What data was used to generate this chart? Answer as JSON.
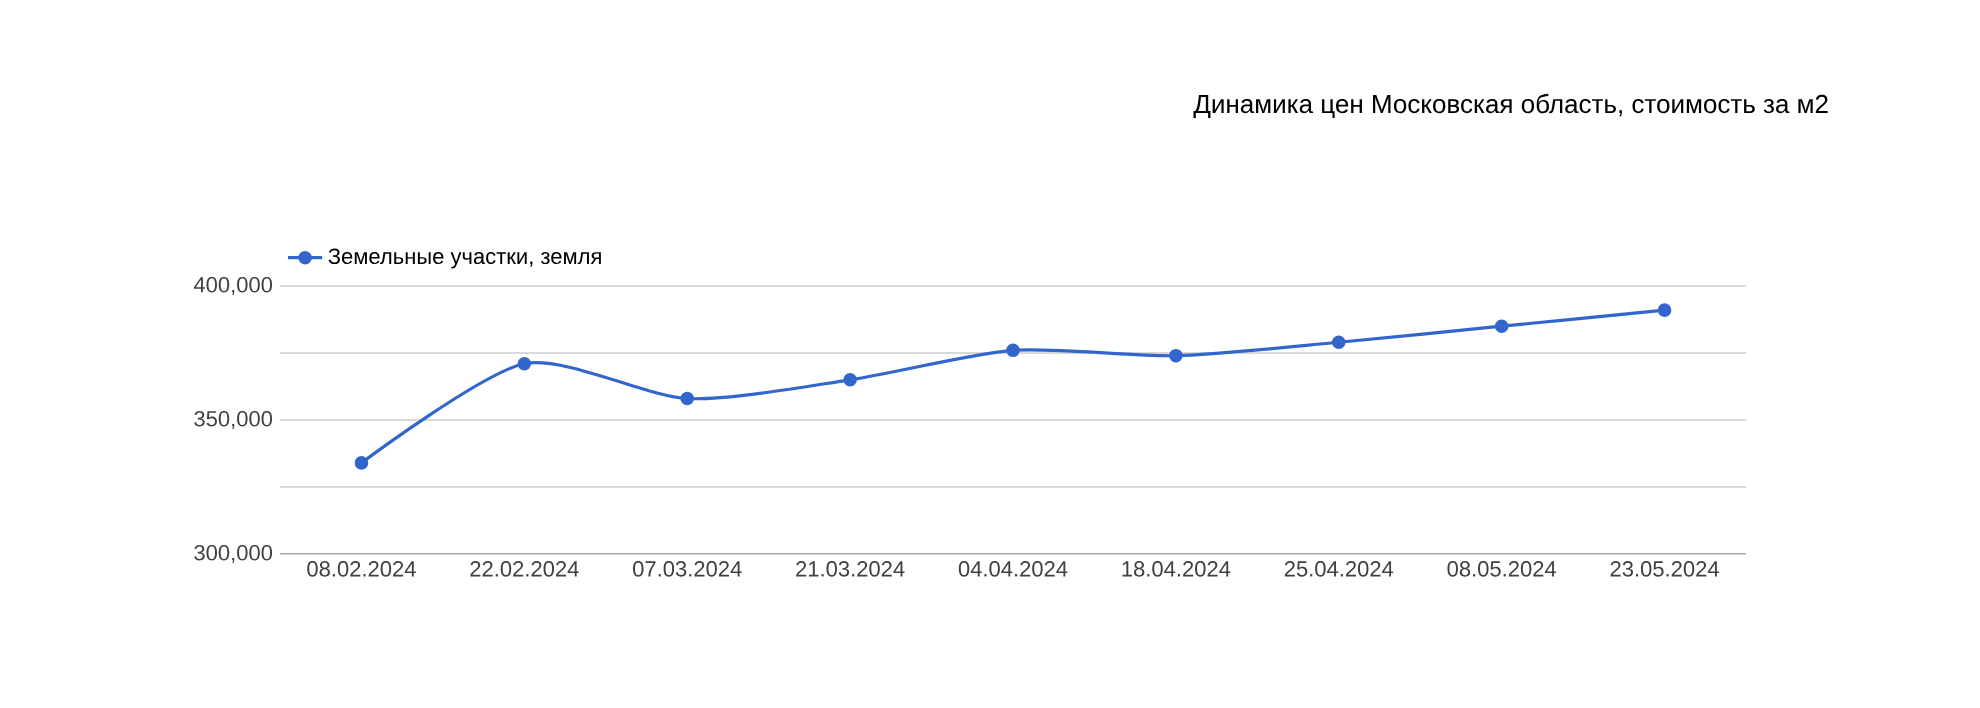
{
  "chart_data": {
    "type": "line",
    "title": "Динамика цен Московская область, стоимость за м2",
    "categories": [
      "08.02.2024",
      "22.02.2024",
      "07.03.2024",
      "21.03.2024",
      "04.04.2024",
      "18.04.2024",
      "25.04.2024",
      "08.05.2024",
      "23.05.2024"
    ],
    "series": [
      {
        "name": "Земельные участки, земля",
        "color": "#3366cc",
        "values": [
          334000,
          371000,
          358000,
          365000,
          376000,
          374000,
          379000,
          385000,
          391000
        ]
      }
    ],
    "ylim": [
      300000,
      400000
    ],
    "yticks": [
      {
        "value": 300000,
        "label": "300,000"
      },
      {
        "value": 325000,
        "label": null
      },
      {
        "value": 350000,
        "label": "350,000"
      },
      {
        "value": 375000,
        "label": null
      },
      {
        "value": 400000,
        "label": "400,000"
      }
    ],
    "grid": "y",
    "legend": "top left",
    "marker": "circle"
  }
}
